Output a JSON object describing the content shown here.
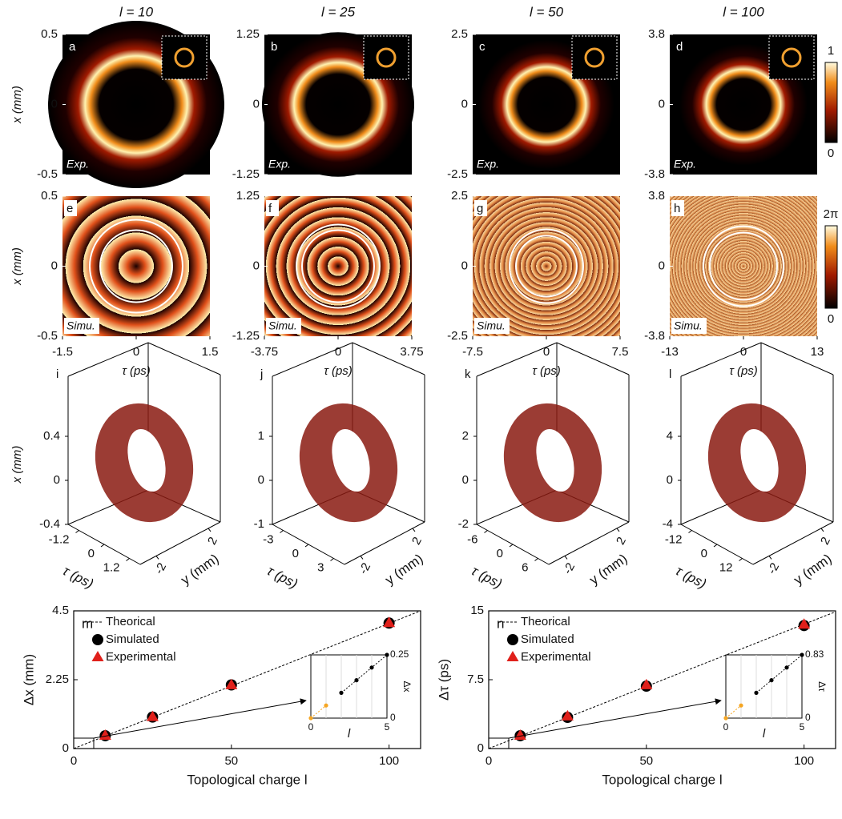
{
  "figure": {
    "column_titles": [
      "l = 10",
      "l = 25",
      "l = 50",
      "l = 100"
    ],
    "x_label": "x (mm)",
    "tau_label": "τ (ps)",
    "y_label": "y (mm)",
    "intensity_panels": [
      {
        "label": "a",
        "tag": "Exp.",
        "yticks": [
          0.5,
          0,
          -0.5
        ]
      },
      {
        "label": "b",
        "tag": "Exp.",
        "yticks": [
          1.25,
          0,
          -1.25
        ]
      },
      {
        "label": "c",
        "tag": "Exp.",
        "yticks": [
          2.5,
          0,
          -2.5
        ]
      },
      {
        "label": "d",
        "tag": "Exp.",
        "yticks": [
          3.8,
          0,
          -3.8
        ]
      }
    ],
    "phase_panels": [
      {
        "label": "e",
        "tag": "Simu.",
        "yticks": [
          0.5,
          0,
          -0.5
        ],
        "xticks": [
          -1.5,
          0,
          1.5
        ]
      },
      {
        "label": "f",
        "tag": "Simu.",
        "yticks": [
          1.25,
          0,
          -1.25
        ],
        "xticks": [
          -3.75,
          0,
          3.75
        ]
      },
      {
        "label": "g",
        "tag": "Simu.",
        "yticks": [
          2.5,
          0,
          -2.5
        ],
        "xticks": [
          -7.5,
          0,
          7.5
        ]
      },
      {
        "label": "h",
        "tag": "Simu.",
        "yticks": [
          3.8,
          0,
          -3.8
        ],
        "xticks": [
          -13,
          0,
          13
        ]
      }
    ],
    "intensity_colorbar": {
      "ticks": [
        1,
        0
      ]
    },
    "phase_colorbar": {
      "ticks": [
        {
          "value": 6.283,
          "label": "2π"
        },
        0
      ]
    },
    "volume_panels": [
      {
        "label": "i",
        "xticks": [
          0.4,
          0,
          -0.4
        ],
        "tauticks": [
          -1.2,
          0,
          1.2
        ],
        "yticks": [
          -2,
          2
        ]
      },
      {
        "label": "j",
        "xticks": [
          1,
          0,
          -1
        ],
        "tauticks": [
          -3,
          0,
          3
        ],
        "yticks": [
          -2,
          2
        ]
      },
      {
        "label": "k",
        "xticks": [
          2,
          0,
          -2
        ],
        "tauticks": [
          -6,
          0,
          6
        ],
        "yticks": [
          -2,
          2
        ]
      },
      {
        "label": "l",
        "xticks": [
          4,
          0,
          -4
        ],
        "tauticks": [
          -12,
          0,
          12
        ],
        "yticks": [
          -2,
          2
        ]
      }
    ]
  },
  "chart_data": [
    {
      "type": "scatter",
      "label": "m",
      "xlabel": "Topological charge l",
      "ylabel": "Δx (mm)",
      "xlim": [
        0,
        110
      ],
      "ylim": [
        0,
        4.5
      ],
      "xticks": [
        0,
        50,
        100
      ],
      "yticks": [
        0,
        2.25,
        4.5
      ],
      "legend": "upper left",
      "series": [
        {
          "name": "Theorical",
          "color": "#000000",
          "marker": "dashed",
          "x": [
            0,
            110
          ],
          "values": [
            0,
            4.5
          ]
        },
        {
          "name": "Simulated",
          "color": "#000000",
          "marker": "circle",
          "x": [
            10,
            25,
            50,
            100
          ],
          "values": [
            0.42,
            1.03,
            2.08,
            4.1
          ]
        },
        {
          "name": "Experimental",
          "color": "#e0201b",
          "marker": "triangle",
          "x": [
            10,
            25,
            50,
            100
          ],
          "values": [
            0.42,
            1.03,
            2.07,
            4.1
          ]
        }
      ],
      "inset": {
        "xlabel": "l",
        "ylabel": "Δx",
        "xlim": [
          0,
          5
        ],
        "ylim": [
          0,
          0.25
        ],
        "xticks": [
          0,
          5
        ],
        "yticks": [
          0,
          0.25
        ],
        "series": [
          {
            "color": "#000000",
            "x": [
              2,
              3,
              4,
              5
            ],
            "values": [
              0.1,
              0.15,
              0.2,
              0.25
            ]
          },
          {
            "color": "#f5a623",
            "x": [
              0,
              1
            ],
            "values": [
              0,
              0.05
            ]
          }
        ]
      }
    },
    {
      "type": "scatter",
      "label": "n",
      "xlabel": "Topological charge l",
      "ylabel": "Δτ (ps)",
      "xlim": [
        0,
        110
      ],
      "ylim": [
        0,
        15
      ],
      "xticks": [
        0,
        50,
        100
      ],
      "yticks": [
        0,
        7.5,
        15
      ],
      "legend": "upper left",
      "series": [
        {
          "name": "Theorical",
          "color": "#000000",
          "marker": "dashed",
          "x": [
            0,
            110
          ],
          "values": [
            0,
            14.9
          ]
        },
        {
          "name": "Simulated",
          "color": "#000000",
          "marker": "circle",
          "x": [
            10,
            25,
            50,
            100
          ],
          "values": [
            1.4,
            3.4,
            6.8,
            13.4
          ]
        },
        {
          "name": "Experimental",
          "color": "#e0201b",
          "marker": "triangle",
          "x": [
            10,
            25,
            50,
            100
          ],
          "values": [
            1.4,
            3.5,
            6.9,
            13.5
          ]
        }
      ],
      "inset": {
        "xlabel": "l",
        "ylabel": "Δτ",
        "xlim": [
          0,
          5
        ],
        "ylim": [
          0,
          0.83
        ],
        "xticks": [
          0,
          5
        ],
        "yticks": [
          0,
          0.83
        ],
        "series": [
          {
            "color": "#000000",
            "x": [
              2,
              3,
              4,
              5
            ],
            "values": [
              0.332,
              0.498,
              0.664,
              0.83
            ]
          },
          {
            "color": "#f5a623",
            "x": [
              0,
              1
            ],
            "values": [
              0,
              0.166
            ]
          }
        ]
      }
    }
  ]
}
